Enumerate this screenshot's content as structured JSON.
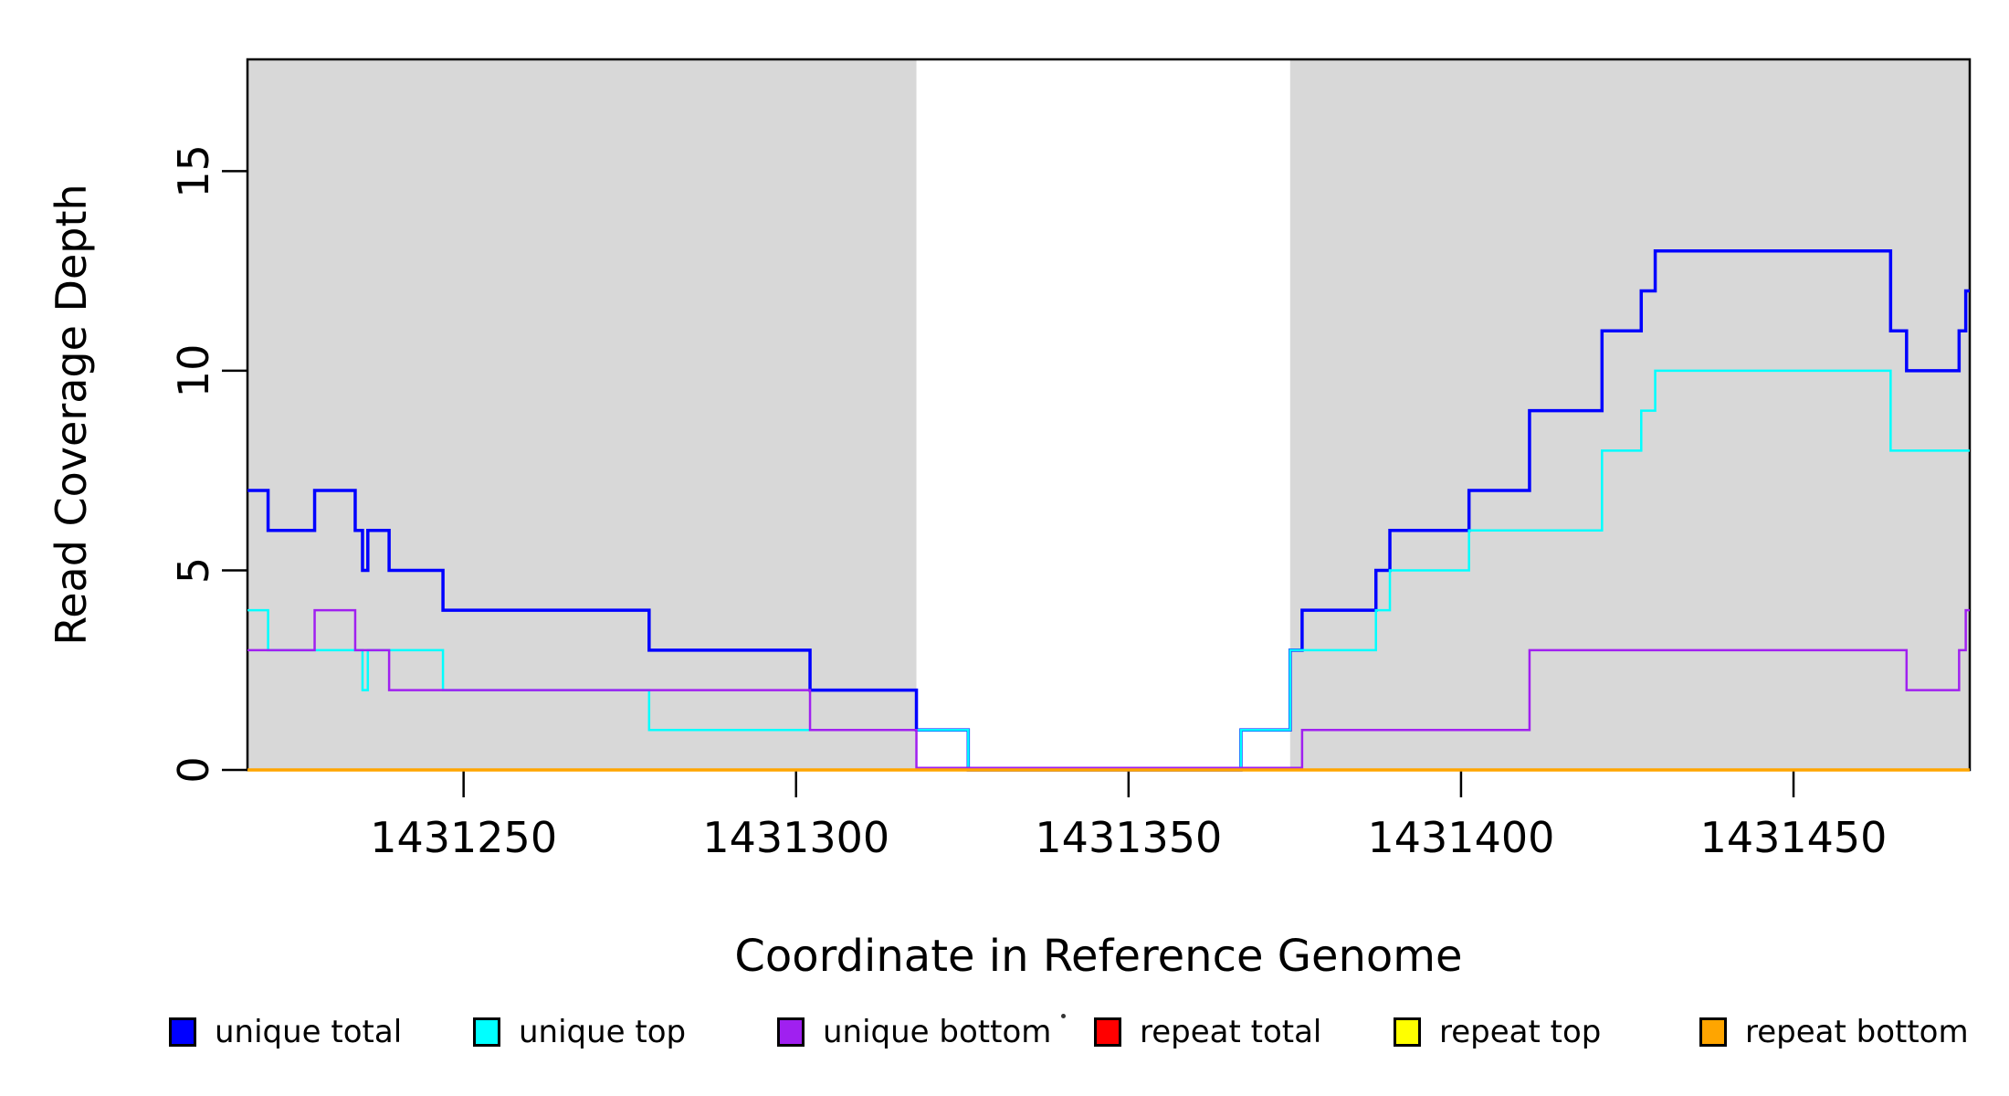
{
  "figure": {
    "ylabel": "Read Coverage Depth",
    "xlabel": "Coordinate in Reference Genome"
  },
  "legend": [
    {
      "label": "unique total",
      "color": "#0000FF"
    },
    {
      "label": "unique top",
      "color": "#00FFFF"
    },
    {
      "label": "unique bottom",
      "color": "#A020F0"
    },
    {
      "label": "repeat total",
      "color": "#FF0000"
    },
    {
      "label": "repeat top",
      "color": "#FFFF00"
    },
    {
      "label": "repeat bottom",
      "color": "#FFA500"
    }
  ],
  "chart_data": {
    "type": "line",
    "subtype": "step-post",
    "title": "",
    "xlabel": "Coordinate in Reference Genome",
    "ylabel": "Read Coverage Depth",
    "xlim": [
      1431217.5,
      1431476.5
    ],
    "ylim": [
      0,
      17.8
    ],
    "xticks": [
      1431250,
      1431300,
      1431350,
      1431400,
      1431450
    ],
    "yticks": [
      0,
      5,
      10,
      15
    ],
    "grid": false,
    "legend_position": "bottom",
    "shade_color": "#D8D8D8",
    "shaded_regions_x": [
      [
        1431217.5,
        1431318.1
      ],
      [
        1431374.3,
        1431476.5
      ]
    ],
    "series": [
      {
        "name": "unique total",
        "color": "#0000FF",
        "width": 3.5,
        "steps": [
          [
            1431217.5,
            7
          ],
          [
            1431220.6,
            6
          ],
          [
            1431227.6,
            7
          ],
          [
            1431233.7,
            6
          ],
          [
            1431234.8,
            5
          ],
          [
            1431235.6,
            6
          ],
          [
            1431238.8,
            5
          ],
          [
            1431246.9,
            4
          ],
          [
            1431277.9,
            3
          ],
          [
            1431302.1,
            2
          ],
          [
            1431318.1,
            1
          ],
          [
            1431325.9,
            0
          ],
          [
            1431366.9,
            1
          ],
          [
            1431374.3,
            3
          ],
          [
            1431376.1,
            4
          ],
          [
            1431387.2,
            5
          ],
          [
            1431389.3,
            6
          ],
          [
            1431401.2,
            7
          ],
          [
            1431410.3,
            9
          ],
          [
            1431421.2,
            11
          ],
          [
            1431427.1,
            12
          ],
          [
            1431429.2,
            13
          ],
          [
            1431464.6,
            11
          ],
          [
            1431467.0,
            10
          ],
          [
            1431474.9,
            11
          ],
          [
            1431475.9,
            12
          ]
        ]
      },
      {
        "name": "unique top",
        "color": "#00FFFF",
        "width": 2.5,
        "steps": [
          [
            1431217.5,
            4
          ],
          [
            1431220.6,
            3
          ],
          [
            1431234.8,
            2
          ],
          [
            1431235.6,
            3
          ],
          [
            1431246.9,
            2
          ],
          [
            1431277.9,
            1
          ],
          [
            1431325.9,
            0
          ],
          [
            1431366.9,
            1
          ],
          [
            1431374.3,
            3
          ],
          [
            1431387.2,
            4
          ],
          [
            1431389.3,
            5
          ],
          [
            1431401.2,
            6
          ],
          [
            1431421.2,
            8
          ],
          [
            1431427.1,
            9
          ],
          [
            1431429.2,
            10
          ],
          [
            1431464.6,
            8
          ]
        ]
      },
      {
        "name": "unique bottom",
        "color": "#A020F0",
        "width": 2.5,
        "steps": [
          [
            1431217.5,
            3
          ],
          [
            1431227.6,
            4
          ],
          [
            1431233.7,
            3
          ],
          [
            1431238.8,
            2
          ],
          [
            1431302.1,
            1
          ],
          [
            1431318.1,
            0
          ],
          [
            1431376.1,
            1
          ],
          [
            1431410.3,
            3
          ],
          [
            1431467.0,
            2
          ],
          [
            1431474.9,
            3
          ],
          [
            1431475.9,
            4
          ]
        ]
      },
      {
        "name": "repeat total",
        "color": "#FF0000",
        "width": 2.5,
        "steps": [
          [
            1431217.5,
            0
          ]
        ]
      },
      {
        "name": "repeat top",
        "color": "#FFFF00",
        "width": 2.5,
        "steps": [
          [
            1431217.5,
            0
          ]
        ]
      },
      {
        "name": "repeat bottom",
        "color": "#FFA500",
        "width": 3.5,
        "steps": [
          [
            1431217.5,
            0
          ]
        ]
      }
    ]
  }
}
